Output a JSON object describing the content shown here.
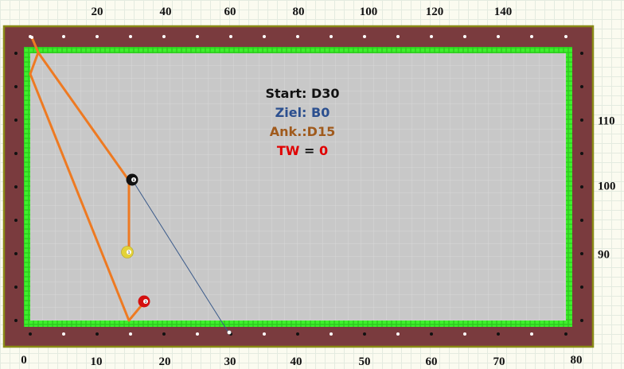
{
  "scale_top": [
    "20",
    "40",
    "60",
    "80",
    "100",
    "120",
    "140"
  ],
  "scale_bottom": [
    "0",
    "10",
    "20",
    "30",
    "40",
    "50",
    "60",
    "70",
    "80"
  ],
  "scale_right": [
    "110",
    "100",
    "90"
  ],
  "info": {
    "start_label": "Start:",
    "start_value": "D30",
    "target_label": "Ziel:",
    "target_value": "B0",
    "anchor_label": "Ank.:",
    "anchor_value": "D15",
    "tw_label": "TW",
    "tw_eq": "=",
    "tw_value": "0"
  },
  "balls": [
    {
      "name": "black-ball",
      "color": "#111111",
      "number": "8"
    },
    {
      "name": "yellow-ball",
      "color": "#e3d23a",
      "number": "1"
    },
    {
      "name": "red-ball",
      "color": "#d41010",
      "number": "3"
    }
  ],
  "colors": {
    "rail": "#7a3b3e",
    "cushion": "#33dd22",
    "cloth": "#c8c8c8",
    "path": "#ee7a22",
    "aim_line": "#3a5a8a",
    "start": "#111111",
    "target": "#2b4f8f",
    "anchor": "#a05a1c",
    "tw": "#e00000"
  }
}
